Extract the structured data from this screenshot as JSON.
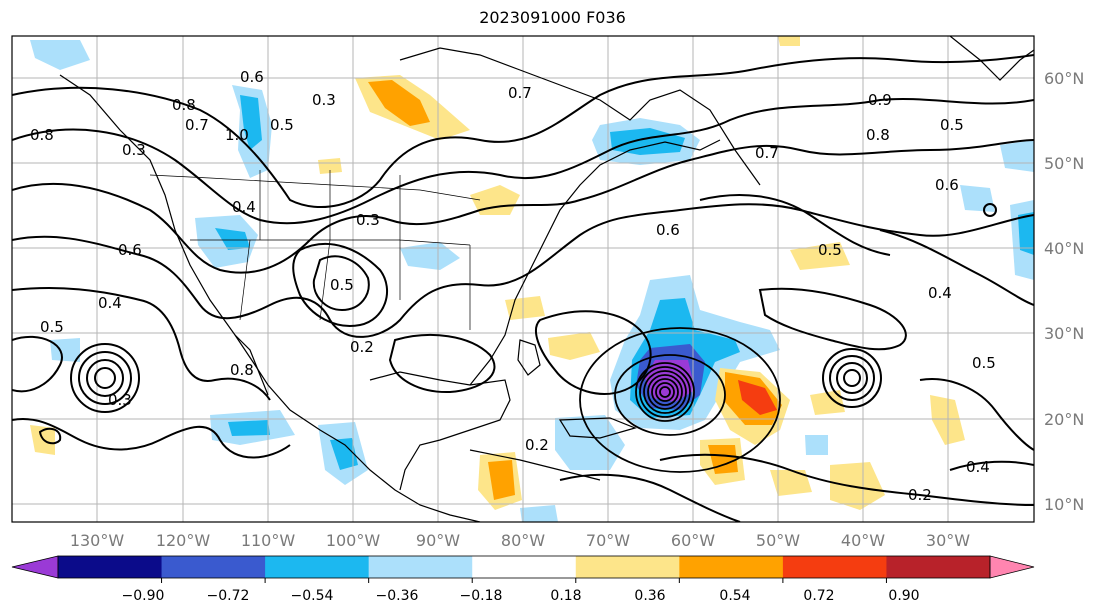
{
  "title": "2023091000 F036",
  "longitude_labels": [
    "130°W",
    "120°W",
    "110°W",
    "100°W",
    "90°W",
    "80°W",
    "70°W",
    "60°W",
    "50°W",
    "40°W",
    "30°W"
  ],
  "latitude_labels": [
    "60°N",
    "50°N",
    "40°N",
    "30°N",
    "20°N",
    "10°N"
  ],
  "colorbar": {
    "tick_labels": [
      "−0.90",
      "−0.72",
      "−0.54",
      "−0.36",
      "−0.18",
      "0.18",
      "0.36",
      "0.54",
      "0.72",
      "0.90"
    ],
    "colors": [
      "#9a3ad6",
      "#0b0b8a",
      "#3a5acf",
      "#1cb8f0",
      "#ace0fb",
      "#ffffff",
      "#fde58a",
      "#ffa200",
      "#f53d10",
      "#b8222a",
      "#ff85b0"
    ]
  },
  "contour_labels": [
    "0.8",
    "0.6",
    "0.8",
    "0.7",
    "1.0",
    "0.5",
    "0.3",
    "0.3",
    "0.7",
    "0.4",
    "0.6",
    "0.3",
    "0.5",
    "0.4",
    "0.2",
    "0.7",
    "0.6",
    "0.8",
    "0.9",
    "0.5",
    "0.6",
    "0.5",
    "0.4",
    "0.3",
    "0.8",
    "0.5",
    "0.2",
    "0.4",
    "0.5",
    "0.2"
  ]
}
